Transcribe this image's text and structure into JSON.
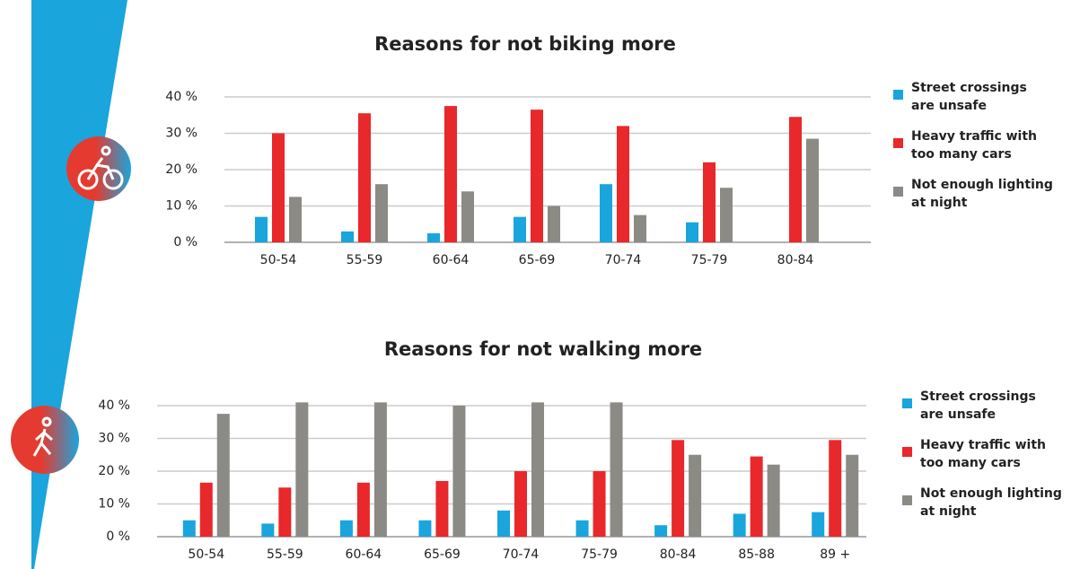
{
  "chart_data": [
    {
      "type": "bar",
      "title": "Reasons for not biking more",
      "categories": [
        "50-54",
        "55-59",
        "60-64",
        "65-69",
        "70-74",
        "75-79",
        "80-84"
      ],
      "series": [
        {
          "name": "Street crossings\nare unsafe",
          "color": "#1aa5dc",
          "values": [
            7,
            3,
            2.5,
            7,
            16,
            5.5,
            0
          ]
        },
        {
          "name": "Heavy traffic with\ntoo many cars",
          "color": "#e8282b",
          "values": [
            30,
            35.5,
            37.5,
            36.5,
            32,
            22,
            34.5
          ]
        },
        {
          "name": "Not enough lighting\nat night",
          "color": "#8c8a85",
          "values": [
            12.5,
            16,
            14,
            10,
            7.5,
            15,
            28.5
          ]
        }
      ],
      "ylim": [
        0,
        40
      ],
      "yticks": [
        {
          "value": 0,
          "label": "0 %"
        },
        {
          "value": 10,
          "label": "10 %"
        },
        {
          "value": 20,
          "label": "20 %"
        },
        {
          "value": 30,
          "label": "30 %"
        },
        {
          "value": 40,
          "label": "40 %"
        }
      ],
      "grid": true,
      "legend": "right"
    },
    {
      "type": "bar",
      "title": "Reasons for not walking more",
      "categories": [
        "50-54",
        "55-59",
        "60-64",
        "65-69",
        "70-74",
        "75-79",
        "80-84",
        "85-88",
        "89 +"
      ],
      "series": [
        {
          "name": "Street crossings\nare unsafe",
          "color": "#1aa5dc",
          "values": [
            5,
            4,
            5,
            5,
            8,
            5,
            3.5,
            7,
            7.5
          ]
        },
        {
          "name": "Heavy traffic with\ntoo many cars",
          "color": "#e8282b",
          "values": [
            16.5,
            15,
            16.5,
            17,
            20,
            20,
            29.5,
            24.5,
            29.5
          ]
        },
        {
          "name": "Not enough lighting\nat night",
          "color": "#8c8a85",
          "values": [
            37.5,
            41,
            41,
            40,
            41,
            41,
            25,
            22,
            25
          ]
        }
      ],
      "ylim": [
        0,
        40
      ],
      "yticks": [
        {
          "value": 0,
          "label": "0 %"
        },
        {
          "value": 10,
          "label": "10 %"
        },
        {
          "value": 20,
          "label": "20 %"
        },
        {
          "value": 30,
          "label": "30 %"
        },
        {
          "value": 40,
          "label": "40 %"
        }
      ],
      "grid": true,
      "legend": "right"
    }
  ]
}
